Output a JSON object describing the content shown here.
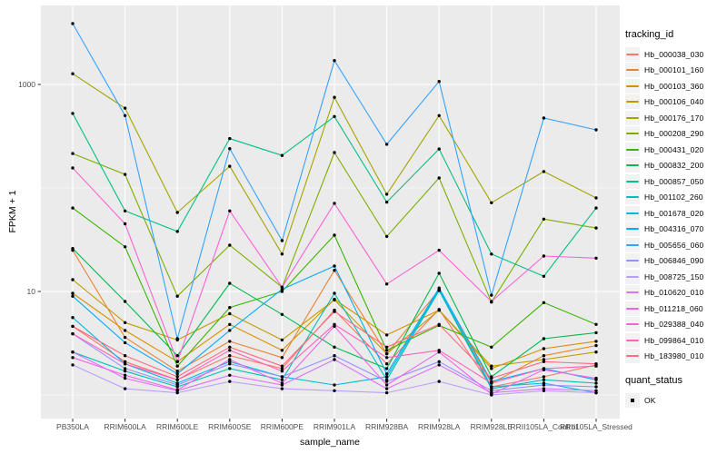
{
  "figure": {
    "background": "#FFFFFF",
    "panel_background": "#EBEBEB",
    "grid_color": "#FFFFFF",
    "axis_text_color": "#4D4D4D",
    "tick_color": "#333333",
    "point_color": "#000000",
    "legend_key_background": "#F2F2F2"
  },
  "y_axis": {
    "title": "FPKM + 1",
    "scale": "log10",
    "major_ticks": [
      {
        "label": "1000",
        "value": 1000
      },
      {
        "label": "10",
        "value": 10
      }
    ],
    "minor_values": [
      100,
      1
    ]
  },
  "x_axis": {
    "title": "sample_name"
  },
  "legend": {
    "tracking_title": "tracking_id",
    "quant_title": "quant_status",
    "quant_items": [
      {
        "label": "OK",
        "marker": "black-square"
      }
    ]
  },
  "chart_data": {
    "type": "line",
    "xlabel": "sample_name",
    "ylabel": "FPKM + 1",
    "yscale": "log10",
    "ylim": [
      0.6,
      5500
    ],
    "grid": true,
    "legend_position": "right",
    "marker": "black point on every vertex",
    "x": [
      "PB350LA",
      "RRIM600LA",
      "RRIM600LE",
      "RRIM600SE",
      "RRIM600PE",
      "RRIM901LA",
      "RRIM928BA",
      "RRIM928LA",
      "RRIM928LE",
      "RRII105LA_Control",
      "RRII105LA_Stressed"
    ],
    "series": [
      {
        "name": "Hb_000038_030",
        "color": "#F8766D",
        "values": [
          4.6,
          2.1,
          1.4,
          2.4,
          1.8,
          6.6,
          2.0,
          6.7,
          1.2,
          1.5,
          1.95
        ]
      },
      {
        "name": "Hb_000101_160",
        "color": "#EA8331",
        "values": [
          25,
          3.6,
          1.7,
          3.3,
          2.3,
          16,
          2.5,
          10.3,
          1.3,
          2.4,
          3.0
        ]
      },
      {
        "name": "Hb_000103_360",
        "color": "#D89000",
        "values": [
          9.6,
          4.2,
          2.1,
          4.8,
          2.7,
          8.4,
          3.8,
          6.6,
          1.8,
          2.8,
          3.3
        ]
      },
      {
        "name": "Hb_000106_040",
        "color": "#C09B00",
        "values": [
          13,
          5.0,
          3.4,
          6.1,
          3.4,
          8.3,
          2.5,
          6.6,
          1.9,
          2.2,
          2.6
        ]
      },
      {
        "name": "Hb_000176_170",
        "color": "#A3A500",
        "values": [
          1270,
          590,
          58,
          162,
          23,
          750,
          87,
          500,
          72,
          144,
          80
        ]
      },
      {
        "name": "Hb_000208_290",
        "color": "#7CAE00",
        "values": [
          215,
          135,
          9,
          28,
          11,
          220,
          34,
          125,
          7.9,
          50,
          41
        ]
      },
      {
        "name": "Hb_000431_020",
        "color": "#39B600",
        "values": [
          64,
          27,
          1.9,
          7,
          10,
          35,
          2.7,
          4.7,
          2.9,
          7.8,
          4.8
        ]
      },
      {
        "name": "Hb_000832_200",
        "color": "#00BB4E",
        "values": [
          26,
          8,
          2.4,
          12,
          6,
          2.9,
          1.8,
          15,
          1.5,
          3.5,
          4.0
        ]
      },
      {
        "name": "Hb_000857_050",
        "color": "#00C087",
        "values": [
          525,
          60,
          38,
          300,
          206,
          490,
          73,
          238,
          23,
          14,
          64
        ]
      },
      {
        "name": "Hb_001102_260",
        "color": "#00C0B8",
        "values": [
          2.6,
          1.7,
          1.2,
          1.8,
          1.4,
          9.6,
          1.4,
          10.2,
          1.15,
          1.4,
          1.3
        ]
      },
      {
        "name": "Hb_001678_020",
        "color": "#00BAE0",
        "values": [
          5.6,
          2.0,
          1.3,
          2.1,
          1.5,
          1.25,
          1.5,
          10.5,
          1.2,
          1.3,
          1.05
        ]
      },
      {
        "name": "Hb_004316_070",
        "color": "#00ACFC",
        "values": [
          9.0,
          3.2,
          1.6,
          4.2,
          10.5,
          17.6,
          1.6,
          10.8,
          1.35,
          1.8,
          1.4
        ]
      },
      {
        "name": "Hb_005656_060",
        "color": "#35A2FF",
        "values": [
          3870,
          500,
          3.5,
          240,
          31,
          1700,
          264,
          1070,
          9.2,
          474,
          364
        ]
      },
      {
        "name": "Hb_006846_090",
        "color": "#9590FF",
        "values": [
          3.9,
          1.8,
          1.25,
          2.0,
          1.5,
          2.4,
          1.35,
          2.1,
          1.1,
          1.25,
          1.2
        ]
      },
      {
        "name": "Hb_008725_150",
        "color": "#BC9DFF",
        "values": [
          1.95,
          1.15,
          1.05,
          1.35,
          1.15,
          1.1,
          1.05,
          1.35,
          1.0,
          1.1,
          1.05
        ]
      },
      {
        "name": "Hb_010620_010",
        "color": "#DC71FA",
        "values": [
          2.6,
          1.45,
          1.1,
          1.55,
          1.25,
          2.2,
          1.15,
          1.95,
          1.05,
          1.15,
          1.1
        ]
      },
      {
        "name": "Hb_011218_060",
        "color": "#F066EA",
        "values": [
          2.3,
          1.55,
          1.12,
          2.2,
          1.3,
          4.6,
          1.25,
          2.6,
          1.02,
          1.75,
          1.45
        ]
      },
      {
        "name": "Hb_029388_040",
        "color": "#FB61D7",
        "values": [
          156,
          45,
          2.1,
          60,
          11,
          71,
          11.8,
          25,
          8,
          22,
          21
        ]
      },
      {
        "name": "Hb_099864_010",
        "color": "#FF62BC",
        "values": [
          3.9,
          2.0,
          1.4,
          2.7,
          1.7,
          4.8,
          2.3,
          2.7,
          1.3,
          1.8,
          1.9
        ]
      },
      {
        "name": "Hb_183980_010",
        "color": "#FF6984",
        "values": [
          4.6,
          2.4,
          1.5,
          2.9,
          1.9,
          6.4,
          2.9,
          4.8,
          1.45,
          2.1,
          2.0
        ]
      }
    ]
  }
}
